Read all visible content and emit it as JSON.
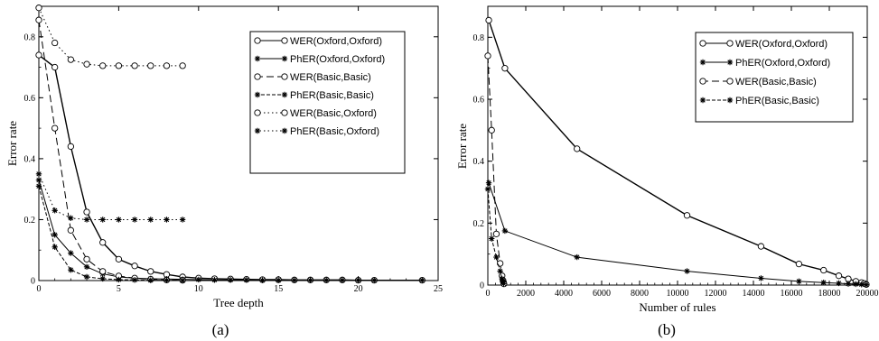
{
  "chart_data": [
    {
      "type": "line",
      "caption": "(a)",
      "xlabel": "Tree depth",
      "ylabel": "Error rate",
      "xlim": [
        0,
        25
      ],
      "ylim": [
        0,
        0.9
      ],
      "xticks": [
        0,
        5,
        10,
        15,
        20,
        25
      ],
      "yticks": [
        0,
        0.2,
        0.4,
        0.6,
        0.8
      ],
      "xtick_labels": [
        "0",
        "5",
        "10",
        "15",
        "20",
        "25"
      ],
      "ytick_labels": [
        "0",
        "0.2",
        "0.4",
        "0.6",
        "0.8"
      ],
      "legend_position": "top-right",
      "series": [
        {
          "name": "WER(Oxford,Oxford)",
          "style": "solid",
          "marker": "circle",
          "x": [
            0,
            1,
            2,
            3,
            4,
            5,
            6,
            7,
            8,
            9,
            10,
            11,
            12,
            13,
            14,
            15,
            16,
            17,
            18,
            19,
            20,
            21,
            24
          ],
          "y": [
            0.74,
            0.7,
            0.44,
            0.225,
            0.125,
            0.07,
            0.048,
            0.03,
            0.02,
            0.012,
            0.008,
            0.006,
            0.005,
            0.004,
            0.003,
            0.003,
            0.002,
            0.002,
            0.002,
            0.002,
            0.001,
            0.001,
            0.001
          ]
        },
        {
          "name": "PhER(Oxford,Oxford)",
          "style": "solid",
          "marker": "star",
          "x": [
            0,
            1,
            2,
            3,
            4,
            5,
            6,
            7,
            8,
            9,
            10,
            11,
            12,
            13,
            14,
            15,
            16,
            17,
            18,
            19,
            20,
            21,
            24
          ],
          "y": [
            0.33,
            0.15,
            0.09,
            0.045,
            0.022,
            0.012,
            0.008,
            0.006,
            0.005,
            0.004,
            0.003,
            0.002,
            0.002,
            0.002,
            0.001,
            0.001,
            0.001,
            0.001,
            0.001,
            0.001,
            0.001,
            0.001,
            0.001
          ]
        },
        {
          "name": "WER(Basic,Basic)",
          "style": "dashed",
          "marker": "circle",
          "x": [
            0,
            1,
            2,
            3,
            4,
            5,
            6,
            7,
            8,
            9
          ],
          "y": [
            0.855,
            0.5,
            0.165,
            0.07,
            0.03,
            0.015,
            0.008,
            0.004,
            0.002,
            0.001
          ]
        },
        {
          "name": "PhER(Basic,Basic)",
          "style": "dashdot",
          "marker": "star",
          "x": [
            0,
            1,
            2,
            3,
            4,
            5,
            6,
            7,
            8,
            9
          ],
          "y": [
            0.31,
            0.11,
            0.035,
            0.012,
            0.006,
            0.003,
            0.002,
            0.001,
            0.001,
            0.0
          ]
        },
        {
          "name": "WER(Basic,Oxford)",
          "style": "dotted",
          "marker": "circle",
          "x": [
            0,
            1,
            2,
            3,
            4,
            5,
            6,
            7,
            8,
            9
          ],
          "y": [
            0.895,
            0.78,
            0.725,
            0.71,
            0.705,
            0.705,
            0.705,
            0.705,
            0.705,
            0.705
          ]
        },
        {
          "name": "PhER(Basic,Oxford)",
          "style": "dotted",
          "marker": "star",
          "x": [
            0,
            1,
            2,
            3,
            4,
            5,
            6,
            7,
            8,
            9
          ],
          "y": [
            0.35,
            0.23,
            0.205,
            0.2,
            0.2,
            0.2,
            0.2,
            0.2,
            0.2,
            0.2
          ]
        }
      ]
    },
    {
      "type": "line",
      "caption": "(b)",
      "xlabel": "Number of rules",
      "ylabel": "Error rate",
      "xlim": [
        0,
        20000
      ],
      "ylim": [
        0,
        0.9
      ],
      "xticks": [
        0,
        2000,
        4000,
        6000,
        8000,
        10000,
        12000,
        14000,
        16000,
        18000,
        20000
      ],
      "yticks": [
        0,
        0.2,
        0.4,
        0.6,
        0.8
      ],
      "xtick_labels": [
        "0",
        "2000",
        "4000",
        "6000",
        "8000",
        "10000",
        "12000",
        "14000",
        "16000",
        "18000",
        "20000"
      ],
      "ytick_labels": [
        "0",
        "0.2",
        "0.4",
        "0.6",
        "0.8"
      ],
      "legend_position": "top-right",
      "series": [
        {
          "name": "WER(Oxford,Oxford)",
          "style": "solid",
          "marker": "circle",
          "x": [
            50,
            900,
            4700,
            10500,
            14400,
            16400,
            17700,
            18500,
            19000,
            19400,
            19700,
            19850,
            19950
          ],
          "y": [
            0.855,
            0.7,
            0.44,
            0.225,
            0.125,
            0.068,
            0.048,
            0.03,
            0.02,
            0.012,
            0.008,
            0.005,
            0.002
          ]
        },
        {
          "name": "PhER(Oxford,Oxford)",
          "style": "solid",
          "marker": "star",
          "x": [
            50,
            900,
            4700,
            10500,
            14400,
            16400,
            17700,
            18500,
            19000,
            19400,
            19700,
            19950
          ],
          "y": [
            0.33,
            0.175,
            0.09,
            0.045,
            0.022,
            0.012,
            0.008,
            0.006,
            0.004,
            0.003,
            0.002,
            0.001
          ]
        },
        {
          "name": "WER(Basic,Basic)",
          "style": "dashed",
          "marker": "circle",
          "x": [
            0,
            200,
            450,
            650,
            750,
            800,
            830,
            850
          ],
          "y": [
            0.74,
            0.5,
            0.165,
            0.07,
            0.03,
            0.015,
            0.008,
            0.004
          ]
        },
        {
          "name": "PhER(Basic,Basic)",
          "style": "dashdot",
          "marker": "star",
          "x": [
            0,
            200,
            450,
            650,
            750,
            800,
            830
          ],
          "y": [
            0.31,
            0.15,
            0.09,
            0.045,
            0.02,
            0.01,
            0.005
          ]
        }
      ]
    }
  ]
}
